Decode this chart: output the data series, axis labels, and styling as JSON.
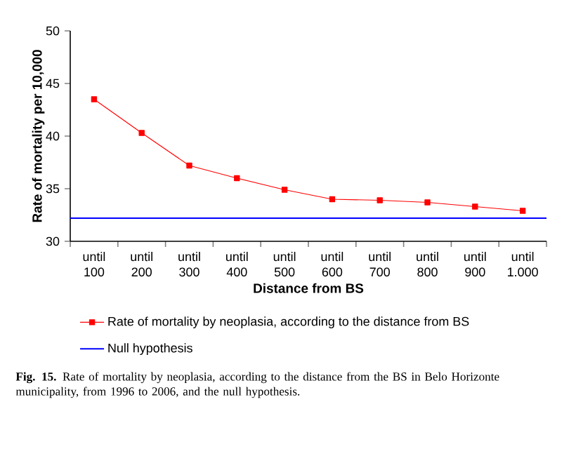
{
  "chart_data": {
    "type": "line",
    "xlabel": "Distance from BS",
    "ylabel": "Rate of mortality per 10,000",
    "categories": [
      "until 100",
      "until 200",
      "until 300",
      "until 400",
      "until 500",
      "until 600",
      "until 700",
      "until 800",
      "until 900",
      "until 1.000"
    ],
    "ylim": [
      30,
      50
    ],
    "yticks": [
      30,
      35,
      40,
      45,
      50
    ],
    "series": [
      {
        "name": "Rate of mortality by neoplasia, according to the distance from BS",
        "color": "#ff0000",
        "values": [
          43.5,
          40.3,
          37.2,
          36.0,
          34.9,
          34.0,
          33.9,
          33.7,
          33.3,
          32.9
        ]
      }
    ],
    "ref_lines": [
      {
        "axis": "y",
        "value": 32.2,
        "label": "Null hypothesis",
        "color": "#0000ff"
      }
    ],
    "marker": "square",
    "line_style": "solid",
    "grid": false,
    "legend": "bottom",
    "annotations": [
      "**Fig. 15.** Rate of mortality by neoplasia, according to the distance from the BS in Belo Horizonte municipality, from 1996 to 2006, and the null hypothesis."
    ]
  }
}
